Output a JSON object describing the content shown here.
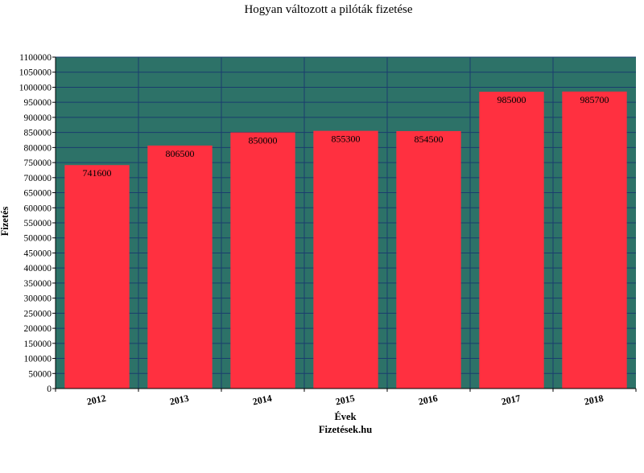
{
  "colors": {
    "plot_background": "#2d7268",
    "bar": "#ff3040",
    "grid": "#1a3c6e",
    "axis": "#000000"
  },
  "chart_data": {
    "type": "bar",
    "title": "Hogyan változott a pilóták fizetése",
    "xlabel": "Évek",
    "ylabel": "Fizetés",
    "footer": "Fizetések.hu",
    "categories": [
      "2012",
      "2013",
      "2014",
      "2015",
      "2016",
      "2017",
      "2018"
    ],
    "values": [
      741600,
      806500,
      850000,
      855300,
      854500,
      985000,
      985700
    ],
    "ylim": [
      0,
      1100000
    ],
    "ytick_step": 50000,
    "grid": true,
    "data_labels": true
  }
}
